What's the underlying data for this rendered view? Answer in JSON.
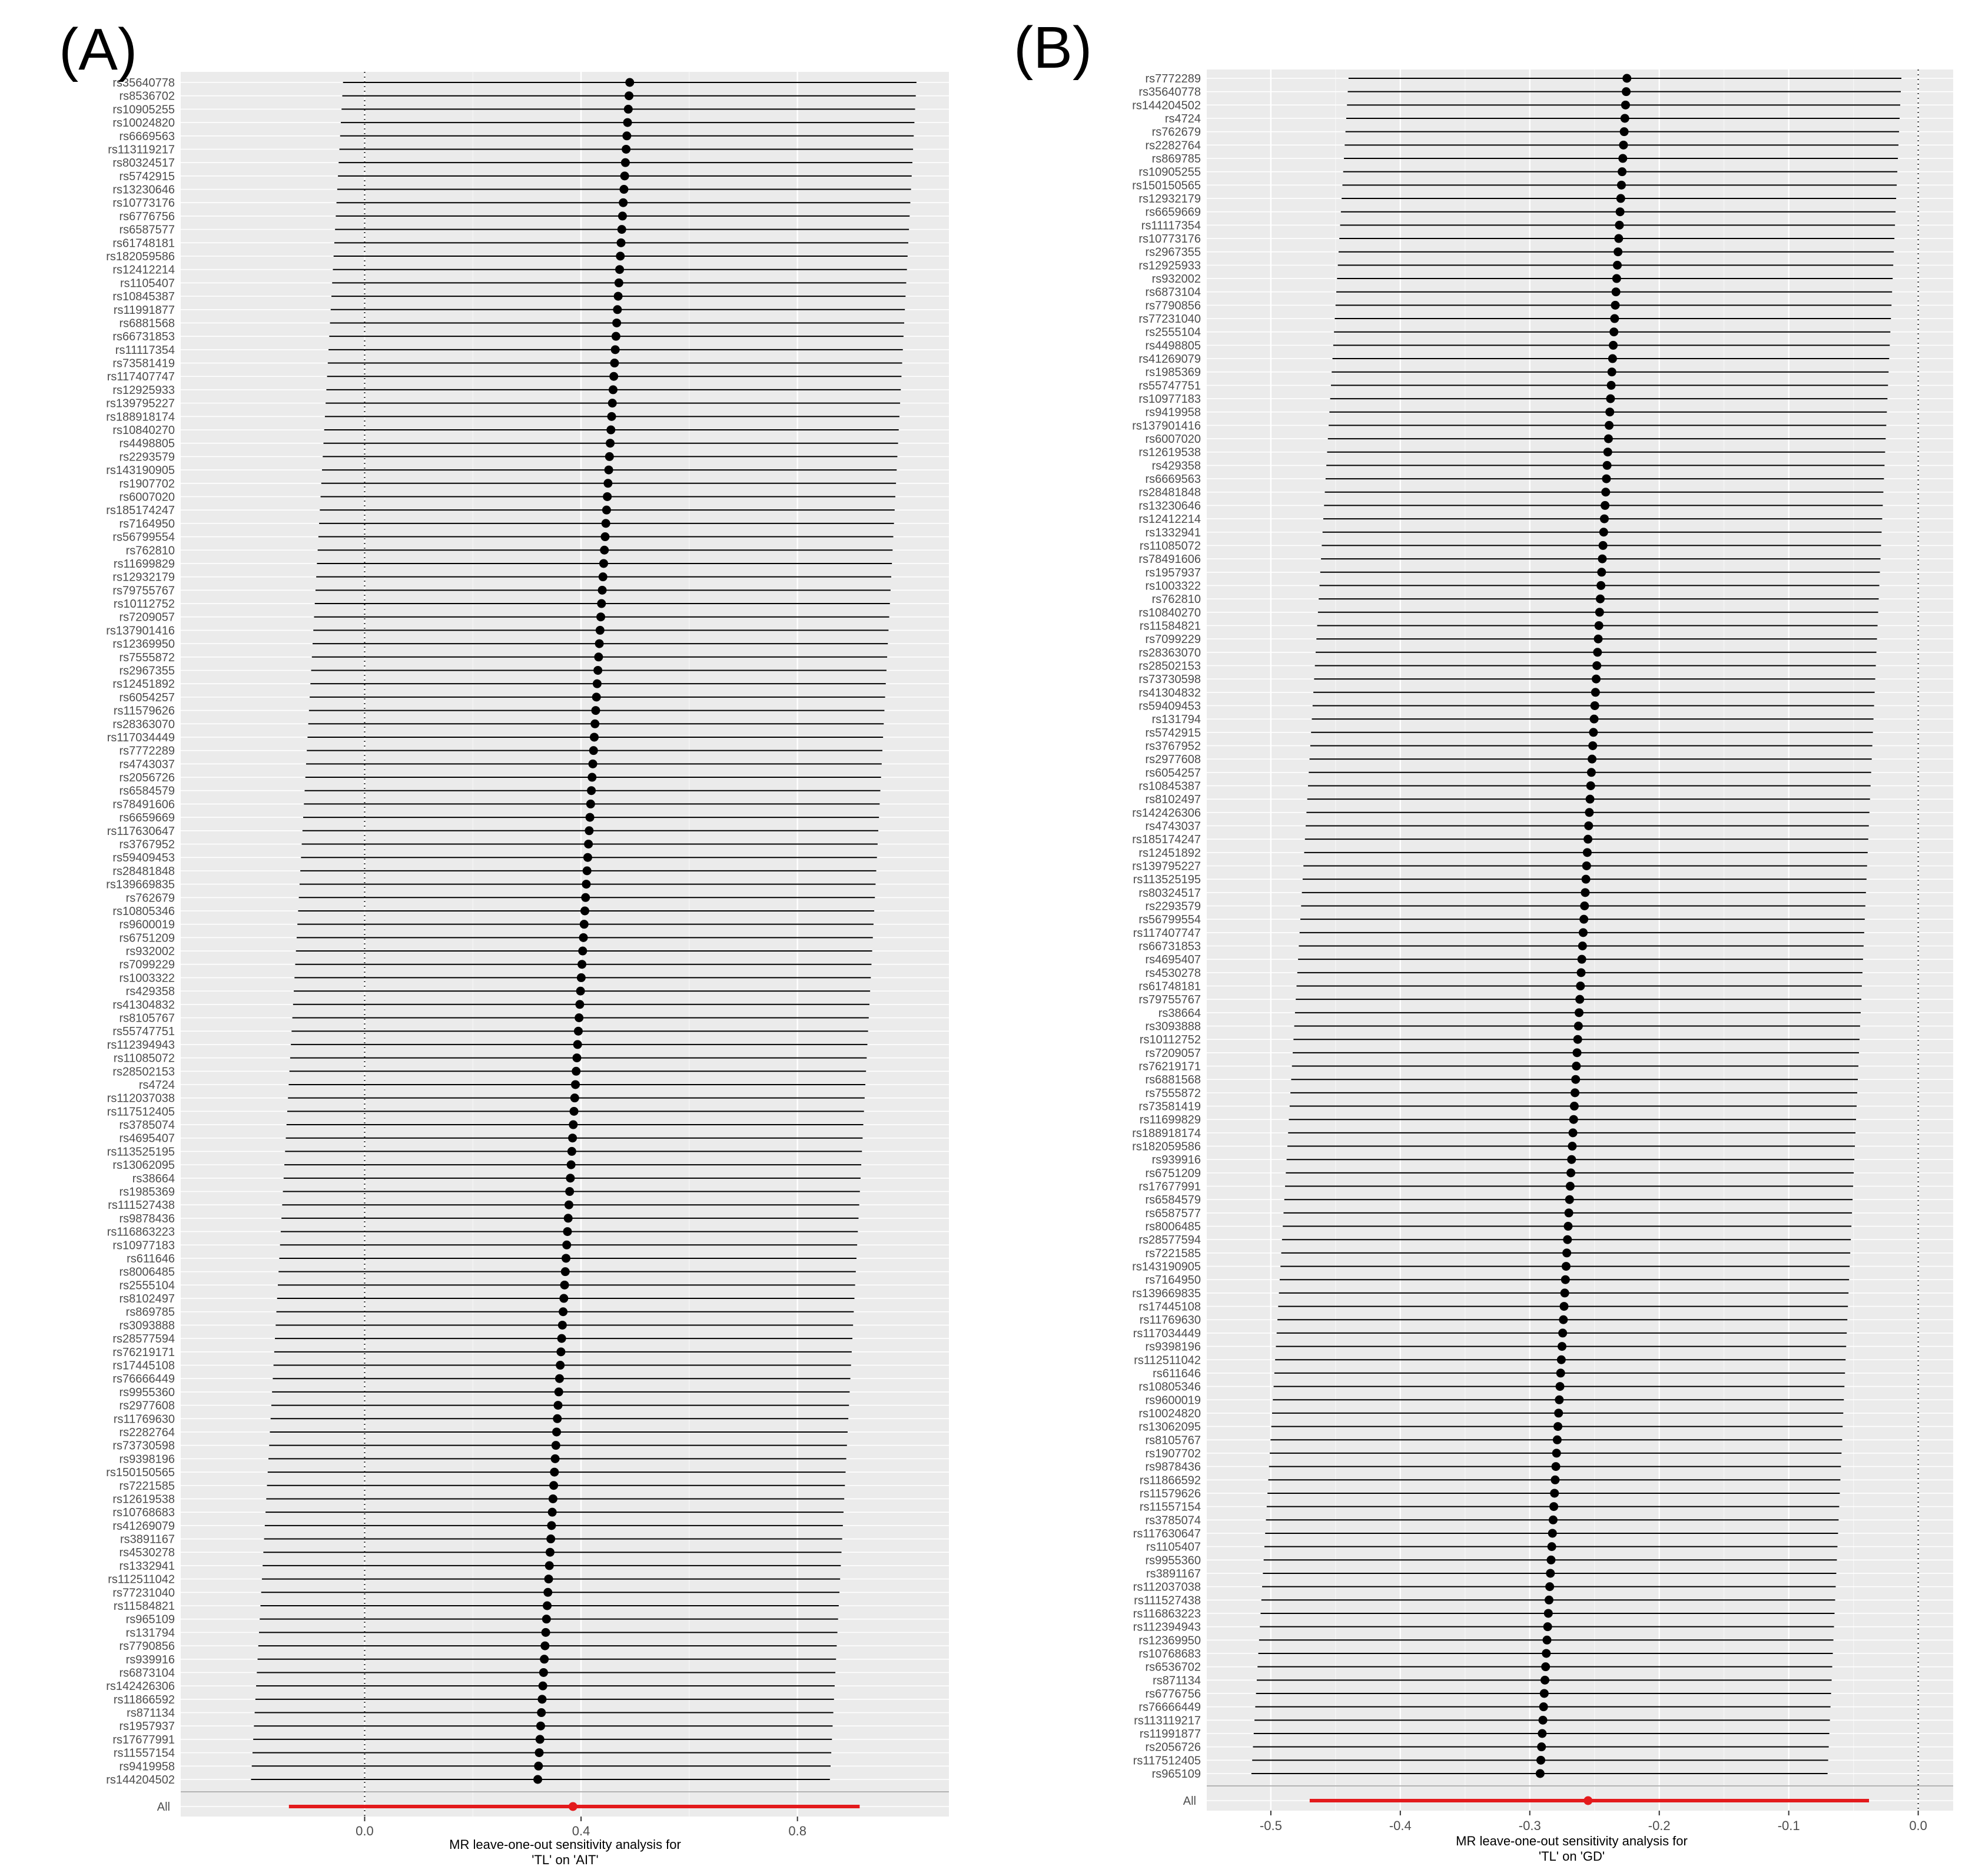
{
  "chart_data": [
    {
      "type": "forest",
      "panel_label": "(A)",
      "xlabel_line1": "MR leave-one-out sensitivity analysis for",
      "xlabel_line2": "'TL' on 'AIT'",
      "xlim": [
        -0.34,
        1.08
      ],
      "xticks": [
        0.0,
        0.4,
        0.8
      ],
      "xtick_labels": [
        "0.0",
        "0.4",
        "0.8"
      ],
      "null_line": 0,
      "snps": [
        "rs35640778",
        "rs8536702",
        "rs10905255",
        "rs10024820",
        "rs6669563",
        "rs113119217",
        "rs80324517",
        "rs5742915",
        "rs13230646",
        "rs10773176",
        "rs6776756",
        "rs6587577",
        "rs61748181",
        "rs182059586",
        "rs12412214",
        "rs1105407",
        "rs10845387",
        "rs11991877",
        "rs6881568",
        "rs66731853",
        "rs11117354",
        "rs73581419",
        "rs117407747",
        "rs12925933",
        "rs139795227",
        "rs188918174",
        "rs10840270",
        "rs4498805",
        "rs2293579",
        "rs143190905",
        "rs1907702",
        "rs6007020",
        "rs185174247",
        "rs7164950",
        "rs56799554",
        "rs762810",
        "rs11699829",
        "rs12932179",
        "rs79755767",
        "rs10112752",
        "rs7209057",
        "rs137901416",
        "rs12369950",
        "rs7555872",
        "rs2967355",
        "rs12451892",
        "rs6054257",
        "rs11579626",
        "rs28363070",
        "rs117034449",
        "rs7772289",
        "rs4743037",
        "rs2056726",
        "rs6584579",
        "rs78491606",
        "rs6659669",
        "rs117630647",
        "rs3767952",
        "rs59409453",
        "rs28481848",
        "rs139669835",
        "rs762679",
        "rs10805346",
        "rs9600019",
        "rs6751209",
        "rs932002",
        "rs7099229",
        "rs1003322",
        "rs429358",
        "rs41304832",
        "rs8105767",
        "rs55747751",
        "rs112394943",
        "rs11085072",
        "rs28502153",
        "rs4724",
        "rs112037038",
        "rs117512405",
        "rs3785074",
        "rs4695407",
        "rs113525195",
        "rs13062095",
        "rs38664",
        "rs1985369",
        "rs111527438",
        "rs9878436",
        "rs116863223",
        "rs10977183",
        "rs611646",
        "rs8006485",
        "rs2555104",
        "rs8102497",
        "rs869785",
        "rs3093888",
        "rs28577594",
        "rs76219171",
        "rs17445108",
        "rs76666449",
        "rs9955360",
        "rs2977608",
        "rs11769630",
        "rs2282764",
        "rs73730598",
        "rs9398196",
        "rs150150565",
        "rs7221585",
        "rs12619538",
        "rs10768683",
        "rs41269079",
        "rs3891167",
        "rs4530278",
        "rs1332941",
        "rs112511042",
        "rs77231040",
        "rs11584821",
        "rs965109",
        "rs131794",
        "rs7790856",
        "rs939916",
        "rs6873104",
        "rs142426306",
        "rs11866592",
        "rs871134",
        "rs1957937",
        "rs17677991",
        "rs11557154",
        "rs9419958",
        "rs144204502"
      ],
      "estimate_start": 0.49,
      "estimate_end": 0.32,
      "ci_lower_start": -0.04,
      "ci_lower_end": -0.21,
      "ci_upper_start": 1.02,
      "ci_upper_end": 0.86,
      "overall": {
        "label": "All",
        "estimate": 0.385,
        "ci_lower": -0.14,
        "ci_upper": 0.915
      }
    },
    {
      "type": "forest",
      "panel_label": "(B)",
      "xlabel_line1": "MR leave-one-out sensitivity analysis for",
      "xlabel_line2": "'TL' on 'GD'",
      "xlim": [
        -0.5495,
        0.027
      ],
      "xticks": [
        -0.5,
        -0.4,
        -0.3,
        -0.2,
        -0.1,
        0.0
      ],
      "xtick_labels": [
        "-0.5",
        "-0.4",
        "-0.3",
        "-0.2",
        "-0.1",
        "0.0"
      ],
      "null_line": 0,
      "snps": [
        "rs7772289",
        "rs35640778",
        "rs144204502",
        "rs4724",
        "rs762679",
        "rs2282764",
        "rs869785",
        "rs10905255",
        "rs150150565",
        "rs12932179",
        "rs6659669",
        "rs11117354",
        "rs10773176",
        "rs2967355",
        "rs12925933",
        "rs932002",
        "rs6873104",
        "rs7790856",
        "rs77231040",
        "rs2555104",
        "rs4498805",
        "rs41269079",
        "rs1985369",
        "rs55747751",
        "rs10977183",
        "rs9419958",
        "rs137901416",
        "rs6007020",
        "rs12619538",
        "rs429358",
        "rs6669563",
        "rs28481848",
        "rs13230646",
        "rs12412214",
        "rs1332941",
        "rs11085072",
        "rs78491606",
        "rs1957937",
        "rs1003322",
        "rs762810",
        "rs10840270",
        "rs11584821",
        "rs7099229",
        "rs28363070",
        "rs28502153",
        "rs73730598",
        "rs41304832",
        "rs59409453",
        "rs131794",
        "rs5742915",
        "rs3767952",
        "rs2977608",
        "rs6054257",
        "rs10845387",
        "rs8102497",
        "rs142426306",
        "rs4743037",
        "rs185174247",
        "rs12451892",
        "rs139795227",
        "rs113525195",
        "rs80324517",
        "rs2293579",
        "rs56799554",
        "rs117407747",
        "rs66731853",
        "rs4695407",
        "rs4530278",
        "rs61748181",
        "rs79755767",
        "rs38664",
        "rs3093888",
        "rs10112752",
        "rs7209057",
        "rs76219171",
        "rs6881568",
        "rs7555872",
        "rs73581419",
        "rs11699829",
        "rs188918174",
        "rs182059586",
        "rs939916",
        "rs6751209",
        "rs17677991",
        "rs6584579",
        "rs6587577",
        "rs8006485",
        "rs28577594",
        "rs7221585",
        "rs143190905",
        "rs7164950",
        "rs139669835",
        "rs17445108",
        "rs11769630",
        "rs117034449",
        "rs9398196",
        "rs112511042",
        "rs611646",
        "rs10805346",
        "rs9600019",
        "rs10024820",
        "rs13062095",
        "rs8105767",
        "rs1907702",
        "rs9878436",
        "rs11866592",
        "rs11579626",
        "rs11557154",
        "rs3785074",
        "rs117630647",
        "rs1105407",
        "rs9955360",
        "rs3891167",
        "rs112037038",
        "rs111527438",
        "rs116863223",
        "rs112394943",
        "rs12369950",
        "rs10768683",
        "rs6536702",
        "rs871134",
        "rs6776756",
        "rs76666449",
        "rs113119217",
        "rs11991877",
        "rs2056726",
        "rs117512405",
        "rs965109"
      ],
      "estimate_start": -0.225,
      "estimate_end": -0.292,
      "ci_lower_start": -0.44,
      "ci_lower_end": -0.515,
      "ci_upper_start": -0.013,
      "ci_upper_end": -0.07,
      "overall": {
        "label": "All",
        "estimate": -0.255,
        "ci_lower": -0.47,
        "ci_upper": -0.038
      }
    }
  ]
}
